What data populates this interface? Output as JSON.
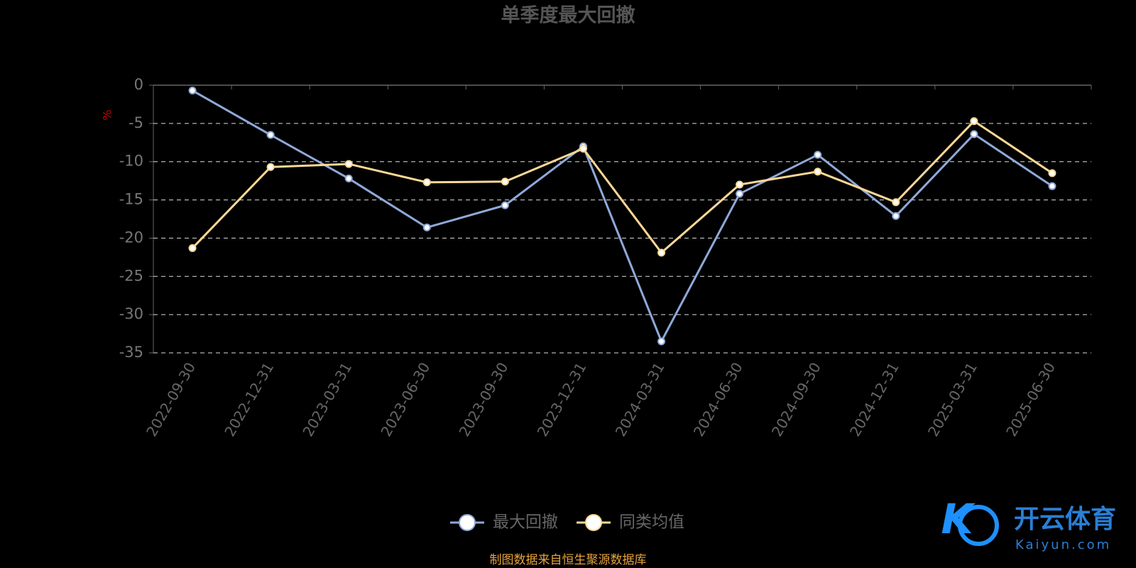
{
  "chart_data": {
    "type": "line",
    "title": "单季度最大回撤",
    "y_label": "%",
    "categories": [
      "2022-09-30",
      "2022-12-31",
      "2023-03-31",
      "2023-06-30",
      "2023-09-30",
      "2023-12-31",
      "2024-03-31",
      "2024-06-30",
      "2024-09-30",
      "2024-12-31",
      "2025-03-31",
      "2025-06-30"
    ],
    "series": [
      {
        "name": "最大回撤",
        "color": "#8fa9d9",
        "values": [
          -0.7,
          -6.5,
          -12.2,
          -18.6,
          -15.7,
          -8.0,
          -33.5,
          -14.2,
          -9.1,
          -17.1,
          -6.4,
          -13.2
        ]
      },
      {
        "name": "同类均值",
        "color": "#fcd894",
        "values": [
          -21.3,
          -10.7,
          -10.3,
          -12.7,
          -12.6,
          -8.3,
          -21.9,
          -13.0,
          -11.3,
          -15.3,
          -4.7,
          -11.5
        ]
      }
    ],
    "ylim": [
      -35,
      0
    ],
    "yticks": [
      0,
      -5,
      -10,
      -15,
      -20,
      -25,
      -30,
      -35
    ],
    "grid": true,
    "legend": "bottom",
    "source": "制图数据来自恒生聚源数据库"
  },
  "watermark": {
    "brand": "开云体育",
    "site": "Kaiyun.com"
  }
}
